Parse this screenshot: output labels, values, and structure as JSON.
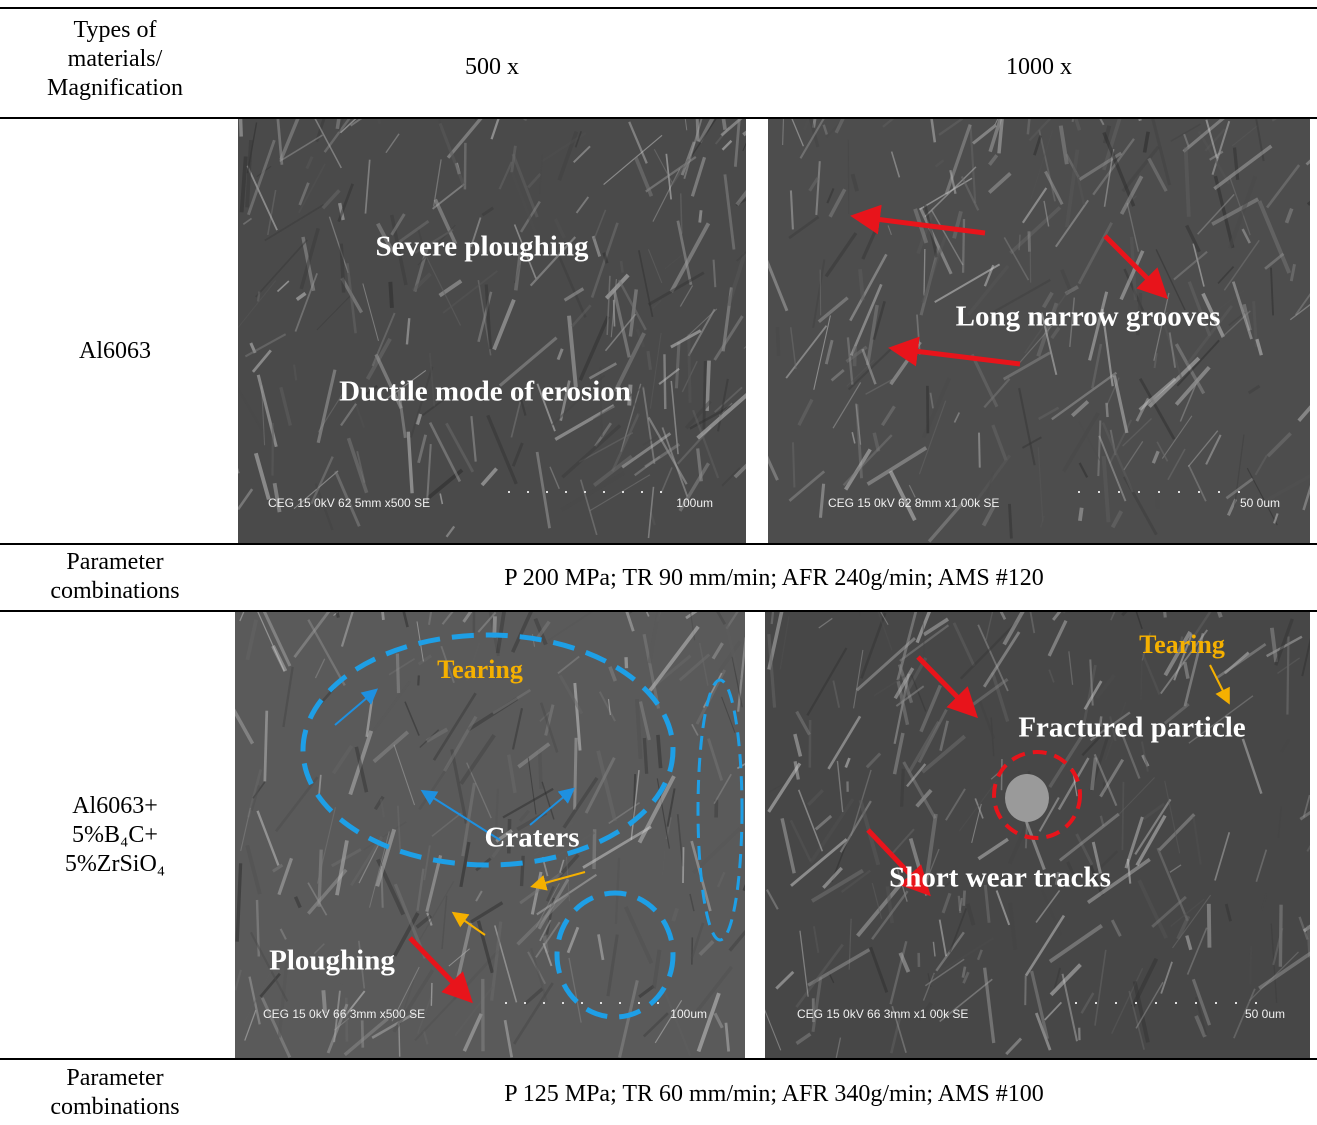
{
  "table": {
    "header": {
      "col0": [
        "Types of",
        "materials/",
        "Magnification"
      ],
      "col1": "500 x",
      "col2": "1000 x"
    },
    "rows": [
      {
        "material": [
          "Al6063"
        ],
        "images": [
          {
            "caption": "CEG 15 0kV 62 5mm x500 SE",
            "scale": "100um",
            "annotations": [
              "Severe ploughing",
              "Ductile mode of erosion"
            ]
          },
          {
            "caption": "CEG 15 0kV 62 8mm x1 00k SE",
            "scale": "50 0um",
            "annotations": [
              "Long narrow grooves"
            ]
          }
        ],
        "parameter_label": [
          "Parameter",
          "combinations"
        ],
        "parameters": "P 200 MPa; TR 90 mm/min; AFR 240g/min; AMS #120"
      },
      {
        "material": [
          "Al6063+",
          "5%B₄C+",
          "5%ZrSiO₄"
        ],
        "images": [
          {
            "caption": "CEG 15 0kV 66 3mm x500 SE",
            "scale": "100um",
            "annotations": [
              "Tearing",
              "Craters",
              "Ploughing"
            ]
          },
          {
            "caption": "CEG 15 0kV 66 3mm x1 00k SE",
            "scale": "50 0um",
            "annotations": [
              "Tearing",
              "Fractured particle",
              "Short wear tracks"
            ]
          }
        ],
        "parameter_label": [
          "Parameter",
          "combinations"
        ],
        "parameters": "P 125 MPa; TR 60 mm/min; AFR 340g/min; AMS #100"
      }
    ]
  }
}
